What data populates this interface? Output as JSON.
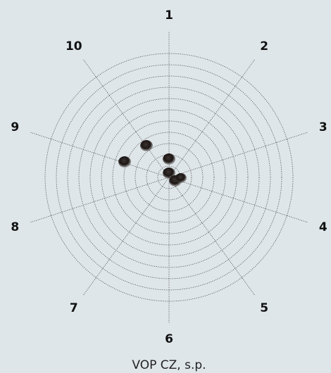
{
  "target": {
    "labels": [
      "1",
      "2",
      "3",
      "4",
      "5",
      "6",
      "7",
      "8",
      "9",
      "10"
    ]
  },
  "caption": "VOP CZ, s.p."
}
